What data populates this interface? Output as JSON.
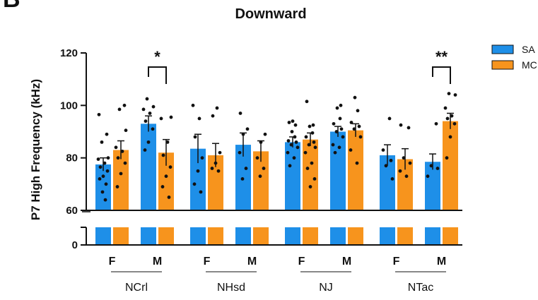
{
  "panel_letter": "B",
  "chart_data": {
    "type": "bar",
    "title": "Downward",
    "ylabel": "P7 High Frequency (kHz)",
    "xlabel": "",
    "ylim_upper": [
      60,
      120
    ],
    "ylim_lower": [
      0,
      0
    ],
    "yticks_upper": [
      60,
      80,
      100,
      120
    ],
    "yticks_lower": [
      0
    ],
    "axis_break": true,
    "grid": false,
    "legend_position": "top-right",
    "groups": [
      "NCrl",
      "NHsd",
      "NJ",
      "NTac"
    ],
    "sexes": [
      "F",
      "M"
    ],
    "series": [
      {
        "name": "SA",
        "color": "#1E8FE8"
      },
      {
        "name": "MC",
        "color": "#F7941D"
      }
    ],
    "bars": [
      {
        "group": "NCrl",
        "sex": "F",
        "series": "SA",
        "mean": 77.5,
        "sem": 2.5,
        "points": [
          96.5,
          89,
          86,
          80,
          79.5,
          78,
          76.5,
          75,
          73,
          72,
          70,
          67,
          64
        ]
      },
      {
        "group": "NCrl",
        "sex": "F",
        "series": "MC",
        "mean": 83,
        "sem": 3.5,
        "points": [
          100,
          98.5,
          90.5,
          84,
          82.5,
          80,
          78,
          74,
          69
        ]
      },
      {
        "group": "NCrl",
        "sex": "M",
        "series": "SA",
        "mean": 93,
        "sem": 3,
        "points": [
          102.5,
          99.5,
          98.5,
          97,
          94,
          91,
          86,
          83
        ]
      },
      {
        "group": "NCrl",
        "sex": "M",
        "series": "MC",
        "mean": 82,
        "sem": 5,
        "points": [
          95.5,
          95,
          86,
          81,
          76.5,
          73,
          69,
          65
        ]
      },
      {
        "group": "NHsd",
        "sex": "F",
        "series": "SA",
        "mean": 83.5,
        "sem": 5.5,
        "points": [
          100,
          95,
          88,
          80,
          75,
          70,
          67
        ]
      },
      {
        "group": "NHsd",
        "sex": "F",
        "series": "MC",
        "mean": 81,
        "sem": 4.5,
        "points": [
          99,
          96,
          82,
          78,
          76,
          75
        ]
      },
      {
        "group": "NHsd",
        "sex": "M",
        "series": "SA",
        "mean": 85,
        "sem": 4.5,
        "points": [
          97,
          91,
          89,
          82,
          76,
          72
        ]
      },
      {
        "group": "NHsd",
        "sex": "M",
        "series": "MC",
        "mean": 82.5,
        "sem": 4,
        "points": [
          89,
          86,
          80,
          76,
          73
        ]
      },
      {
        "group": "NJ",
        "sex": "F",
        "series": "SA",
        "mean": 86,
        "sem": 2,
        "points": [
          94,
          93.5,
          92.5,
          90,
          88,
          86.5,
          86,
          85,
          84,
          82,
          80,
          77
        ]
      },
      {
        "group": "NJ",
        "sex": "F",
        "series": "MC",
        "mean": 87,
        "sem": 2.5,
        "points": [
          101.5,
          92.5,
          92,
          89.5,
          88,
          86,
          85,
          84,
          82,
          78,
          76,
          72,
          69
        ]
      },
      {
        "group": "NJ",
        "sex": "M",
        "series": "SA",
        "mean": 90,
        "sem": 2,
        "points": [
          100,
          99,
          95,
          93,
          91,
          90,
          88,
          85,
          84,
          82
        ]
      },
      {
        "group": "NJ",
        "sex": "M",
        "series": "MC",
        "mean": 90.5,
        "sem": 2.5,
        "points": [
          103,
          98,
          93.5,
          92,
          91,
          88,
          83,
          78
        ]
      },
      {
        "group": "NTac",
        "sex": "F",
        "series": "SA",
        "mean": 81,
        "sem": 4,
        "points": [
          95,
          83,
          79,
          77,
          72
        ]
      },
      {
        "group": "NTac",
        "sex": "F",
        "series": "MC",
        "mean": 79.5,
        "sem": 4,
        "points": [
          92.5,
          91.5,
          80,
          78,
          75,
          73
        ]
      },
      {
        "group": "NTac",
        "sex": "M",
        "series": "SA",
        "mean": 78.5,
        "sem": 3,
        "points": [
          93,
          77,
          76,
          73
        ]
      },
      {
        "group": "NTac",
        "sex": "M",
        "series": "MC",
        "mean": 94,
        "sem": 3,
        "points": [
          104.5,
          104,
          99,
          96,
          95,
          93,
          88,
          80
        ]
      }
    ],
    "annotations": [
      {
        "group": "NCrl",
        "sex": "M",
        "text": "*"
      },
      {
        "group": "NTac",
        "sex": "M",
        "text": "**"
      }
    ]
  }
}
